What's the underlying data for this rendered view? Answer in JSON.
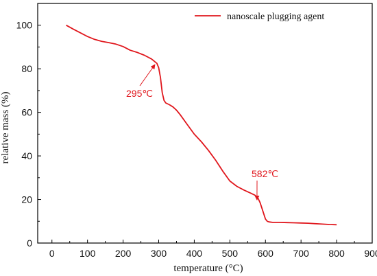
{
  "chart_data": {
    "type": "line",
    "xlabel": "temperature (°C)",
    "ylabel": "relative mass (%)",
    "xlim": [
      -40,
      900
    ],
    "ylim": [
      0,
      110
    ],
    "xticks": [
      0,
      100,
      200,
      300,
      400,
      500,
      600,
      700,
      800,
      900
    ],
    "yticks": [
      0,
      20,
      40,
      60,
      80,
      100
    ],
    "grid": false,
    "legend_position": "top-right",
    "series": [
      {
        "name": "nanoscale plugging agent",
        "color": "#e0161c",
        "x": [
          40,
          60,
          80,
          100,
          120,
          140,
          160,
          180,
          200,
          220,
          240,
          260,
          280,
          295,
          300,
          305,
          310,
          315,
          320,
          330,
          340,
          350,
          360,
          380,
          400,
          420,
          440,
          460,
          480,
          500,
          520,
          540,
          560,
          570,
          578,
          585,
          590,
          595,
          600,
          605,
          610,
          620,
          640,
          660,
          680,
          700,
          720,
          740,
          760,
          780,
          800
        ],
        "y": [
          100,
          98.2,
          96.5,
          94.8,
          93.5,
          92.6,
          92,
          91.3,
          90.2,
          88.5,
          87.5,
          86.2,
          84.5,
          82.5,
          80.5,
          76,
          69,
          65.5,
          64.3,
          63.5,
          62.5,
          61,
          59,
          54.5,
          50,
          46.5,
          42.5,
          38,
          33,
          28.5,
          26,
          24.3,
          22.8,
          22,
          21,
          18.5,
          16,
          13.5,
          11,
          10,
          9.7,
          9.5,
          9.5,
          9.4,
          9.3,
          9.2,
          9.1,
          8.9,
          8.7,
          8.5,
          8.4
        ]
      }
    ],
    "annotations": [
      {
        "text": "295℃",
        "x": 295,
        "y": 82.5,
        "color": "#e0161c"
      },
      {
        "text": "582℃",
        "x": 582,
        "y": 20.5,
        "color": "#e0161c"
      }
    ]
  }
}
